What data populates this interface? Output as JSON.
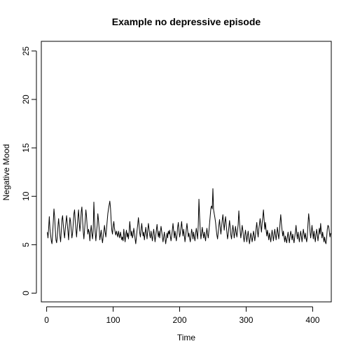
{
  "chart_data": {
    "type": "line",
    "title": "Example no depressive episode",
    "xlabel": "Time",
    "ylabel": "Negative Mood",
    "xlim": [
      -8,
      428
    ],
    "ylim": [
      -0.9,
      26
    ],
    "xticks": [
      0,
      100,
      200,
      300,
      400
    ],
    "yticks": [
      0,
      5,
      10,
      15,
      20,
      25
    ],
    "grid": false,
    "legend": "none",
    "line_color": "#000000",
    "series": [
      {
        "x_start": 1,
        "x_step": 1,
        "values": [
          6.3,
          5.7,
          6.7,
          7.9,
          6.6,
          6.0,
          5.4,
          5.1,
          6.1,
          7.4,
          8.7,
          7.9,
          6.6,
          5.5,
          5.2,
          5.8,
          6.9,
          7.7,
          6.8,
          5.9,
          5.3,
          6.4,
          7.6,
          8.0,
          7.1,
          6.3,
          5.7,
          6.6,
          7.3,
          8.0,
          7.2,
          6.4,
          5.5,
          6.8,
          7.8,
          7.4,
          6.5,
          5.7,
          6.2,
          7.2,
          8.2,
          8.6,
          7.5,
          6.6,
          5.8,
          6.8,
          7.8,
          8.6,
          7.3,
          6.4,
          7.2,
          8.4,
          8.9,
          7.6,
          6.4,
          5.6,
          6.5,
          7.5,
          8.6,
          7.9,
          6.8,
          6.1,
          6.6,
          6.3,
          5.4,
          6.3,
          7.0,
          6.2,
          5.6,
          6.4,
          9.4,
          7.6,
          6.3,
          5.4,
          6.3,
          7.0,
          8.2,
          7.5,
          6.6,
          5.5,
          6.0,
          6.5,
          5.7,
          5.2,
          5.8,
          6.4,
          7.0,
          6.3,
          5.8,
          6.6,
          7.4,
          8.2,
          8.7,
          9.1,
          9.5,
          8.8,
          7.5,
          6.5,
          6.1,
          6.9,
          7.4,
          6.7,
          6.3,
          6.0,
          6.4,
          6.1,
          5.8,
          6.4,
          6.0,
          5.7,
          6.3,
          5.9,
          5.5,
          5.8,
          5.4,
          6.6,
          5.9,
          5.3,
          6.1,
          6.5,
          5.8,
          6.2,
          5.6,
          6.3,
          7.4,
          6.6,
          5.9,
          6.4,
          5.7,
          6.0,
          6.7,
          6.2,
          5.6,
          5.1,
          5.8,
          6.5,
          7.1,
          7.8,
          7.0,
          6.2,
          5.8,
          6.5,
          7.2,
          6.5,
          5.9,
          6.3,
          5.5,
          6.1,
          6.8,
          6.2,
          5.6,
          6.5,
          7.2,
          6.6,
          6.0,
          5.7,
          6.4,
          5.9,
          5.4,
          6.1,
          6.6,
          6.0,
          5.3,
          5.9,
          6.5,
          7.1,
          6.3,
          5.8,
          6.4,
          5.7,
          6.3,
          6.9,
          6.4,
          5.8,
          5.3,
          5.8,
          6.3,
          5.7,
          5.1,
          5.6,
          6.2,
          5.7,
          6.4,
          6.1,
          6.5,
          5.9,
          5.4,
          5.9,
          6.5,
          7.2,
          6.4,
          5.7,
          6.4,
          5.9,
          5.4,
          6.0,
          6.8,
          7.3,
          6.5,
          5.8,
          6.2,
          6.8,
          7.4,
          6.6,
          5.9,
          6.6,
          6.0,
          5.3,
          5.9,
          6.6,
          7.2,
          6.5,
          5.8,
          6.2,
          5.7,
          5.3,
          5.9,
          6.6,
          6.2,
          5.6,
          6.3,
          5.8,
          5.4,
          6.1,
          6.7,
          6.2,
          5.6,
          7.0,
          9.7,
          7.9,
          6.5,
          5.6,
          6.2,
          6.8,
          6.2,
          5.7,
          6.3,
          5.8,
          5.4,
          6.2,
          6.7,
          6.1,
          5.7,
          6.4,
          7.2,
          8.0,
          8.8,
          9.0,
          8.7,
          10.8,
          8.6,
          8.2,
          7.8,
          7.3,
          6.6,
          6.0,
          5.6,
          6.3,
          7.0,
          7.6,
          6.8,
          6.1,
          6.8,
          7.5,
          8.1,
          7.3,
          6.5,
          7.3,
          7.9,
          7.1,
          6.3,
          5.6,
          6.1,
          6.8,
          7.5,
          6.8,
          6.0,
          5.6,
          6.3,
          7.0,
          6.5,
          5.7,
          6.2,
          6.9,
          6.3,
          5.8,
          6.4,
          7.1,
          8.5,
          7.3,
          6.4,
          5.7,
          6.3,
          7.0,
          6.5,
          5.8,
          5.3,
          6.0,
          6.5,
          5.9,
          5.3,
          5.9,
          6.4,
          5.7,
          5.1,
          5.6,
          6.2,
          5.8,
          5.3,
          5.8,
          6.4,
          6.0,
          5.4,
          6.0,
          6.7,
          7.3,
          6.4,
          5.8,
          6.6,
          7.1,
          7.7,
          7.0,
          6.3,
          7.2,
          7.8,
          8.6,
          7.6,
          6.6,
          7.3,
          6.5,
          5.9,
          6.5,
          6.0,
          5.5,
          6.2,
          5.8,
          5.3,
          5.9,
          6.5,
          6.0,
          5.4,
          6.0,
          6.6,
          6.1,
          5.5,
          6.1,
          6.8,
          6.2,
          5.6,
          6.3,
          7.3,
          8.1,
          7.2,
          6.5,
          5.9,
          6.4,
          5.8,
          5.3,
          5.9,
          5.5,
          5.2,
          5.8,
          6.3,
          5.7,
          5.2,
          5.9,
          6.4,
          6.0,
          5.5,
          6.1,
          5.6,
          5.2,
          5.8,
          6.3,
          7.0,
          6.2,
          5.6,
          6.3,
          5.8,
          5.3,
          5.9,
          6.4,
          5.9,
          5.3,
          6.0,
          6.6,
          6.1,
          5.6,
          6.2,
          5.7,
          5.3,
          5.9,
          7.2,
          8.2,
          7.4,
          6.4,
          5.7,
          6.3,
          7.0,
          6.3,
          5.6,
          6.4,
          5.8,
          5.3,
          6.1,
          6.6,
          6.0,
          5.4,
          6.1,
          6.7,
          6.1,
          7.2,
          6.3,
          5.7,
          6.3,
          5.8,
          5.3,
          5.8,
          5.3,
          5.1,
          5.7,
          6.6,
          7.0,
          6.9,
          6.4,
          5.8,
          6.2
        ]
      }
    ]
  }
}
